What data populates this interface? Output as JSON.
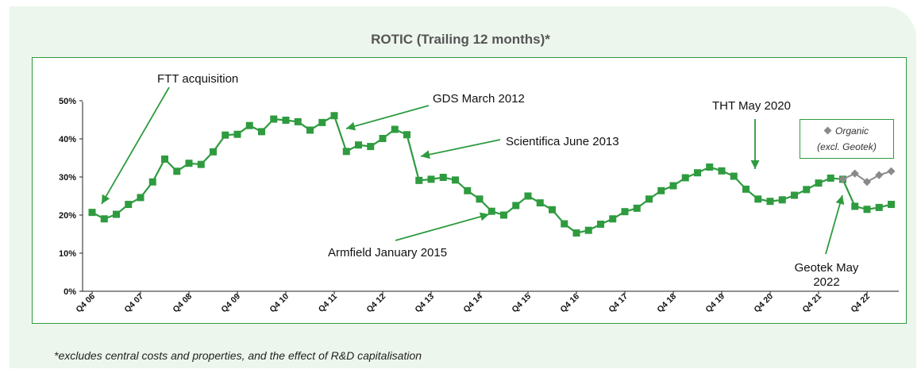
{
  "chart_data": {
    "type": "line",
    "title": "ROTIC (Trailing 12 months)*",
    "ylabel": "",
    "xlabel": "",
    "ylim": [
      0,
      50
    ],
    "y_ticks": [
      "0%",
      "10%",
      "20%",
      "30%",
      "40%",
      "50%"
    ],
    "x_ticks": [
      "Q4 06",
      "Q4 07",
      "Q4 08",
      "Q4 09",
      "Q4 10",
      "Q4 11",
      "Q4 12",
      "Q4 13",
      "Q4 14",
      "Q4 15",
      "Q4 16",
      "Q4 17",
      "Q4 18",
      "Q4 19",
      "Q4 20",
      "Q4 21",
      "Q4 22"
    ],
    "series": [
      {
        "name": "",
        "color": "#2e9b3f",
        "marker": "square",
        "values": [
          20.7,
          19.0,
          20.2,
          22.8,
          24.6,
          28.7,
          34.7,
          31.5,
          33.6,
          33.3,
          36.6,
          41.0,
          41.2,
          43.5,
          41.9,
          45.2,
          44.9,
          44.5,
          42.3,
          44.3,
          46.1,
          36.7,
          38.4,
          38.0,
          40.1,
          42.5,
          41.1,
          29.1,
          29.4,
          29.9,
          29.2,
          26.4,
          24.2,
          21.0,
          20.0,
          22.5,
          25.0,
          23.2,
          21.4,
          17.7,
          15.3,
          16.0,
          17.6,
          19.0,
          20.9,
          21.8,
          24.2,
          26.4,
          27.7,
          29.8,
          31.1,
          32.6,
          31.6,
          30.2,
          26.8,
          24.2,
          23.6,
          24.0,
          25.2,
          26.7,
          28.4,
          29.7,
          29.4,
          22.3,
          21.5,
          22.0,
          22.8
        ]
      },
      {
        "name": "Organic (excl. Geotek)",
        "color": "#8a8a8a",
        "marker": "diamond",
        "start_index": 62,
        "values": [
          29.4,
          30.9,
          28.7,
          30.5,
          31.5
        ]
      }
    ],
    "annotations": [
      {
        "text": "FTT acquisition",
        "target_index": 1
      },
      {
        "text": "GDS March 2012",
        "target_index": 21
      },
      {
        "text": "Scientifica June 2013",
        "target_index": 27
      },
      {
        "text": "Armfield January 2015",
        "target_index": 33
      },
      {
        "text": "THT May 2020",
        "target_index": 54
      },
      {
        "text": "Geotek May 2022",
        "target_index": 62
      }
    ],
    "legend": {
      "text_line1": "Organic",
      "text_line2": "(excl. Geotek)",
      "position": "right"
    },
    "grid": false
  },
  "footnote": "*excludes central costs and properties, and the effect of R&D capitalisation"
}
